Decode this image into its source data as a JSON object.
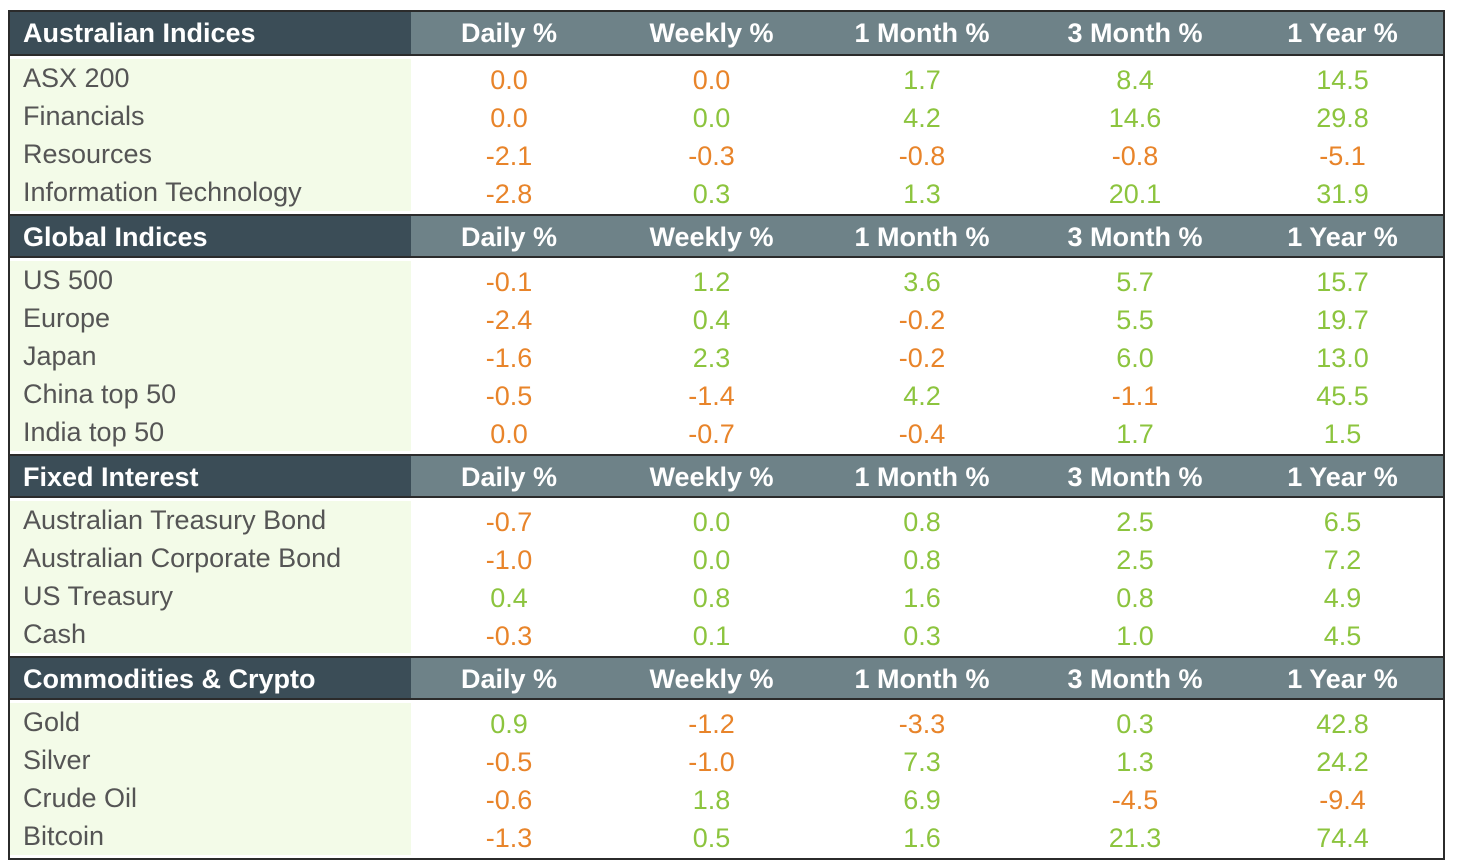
{
  "colors": {
    "header_dark": "#3b4d57",
    "header_light": "#6e8288",
    "name_bg": "#f3fbe8",
    "positive": "#8cc43e",
    "negative_or_zero": "#e8842a"
  },
  "sections": [
    {
      "title": "Australian Indices",
      "columns": [
        "Daily %",
        "Weekly %",
        "1 Month %",
        "3 Month %",
        "1 Year %"
      ],
      "rows": [
        {
          "name": "ASX 200",
          "values": [
            "0.0",
            "0.0",
            "1.7",
            "8.4",
            "14.5"
          ]
        },
        {
          "name": "Financials",
          "values": [
            "0.0",
            "0.0",
            "4.2",
            "14.6",
            "29.8"
          ]
        },
        {
          "name": "Resources",
          "values": [
            "-2.1",
            "-0.3",
            "-0.8",
            "-0.8",
            "-5.1"
          ]
        },
        {
          "name": "Information Technology",
          "values": [
            "-2.8",
            "0.3",
            "1.3",
            "20.1",
            "31.9"
          ]
        }
      ]
    },
    {
      "title": "Global Indices",
      "columns": [
        "Daily %",
        "Weekly %",
        "1 Month %",
        "3 Month %",
        "1 Year %"
      ],
      "rows": [
        {
          "name": "US 500",
          "values": [
            "-0.1",
            "1.2",
            "3.6",
            "5.7",
            "15.7"
          ]
        },
        {
          "name": "Europe",
          "values": [
            "-2.4",
            "0.4",
            "-0.2",
            "5.5",
            "19.7"
          ]
        },
        {
          "name": "Japan",
          "values": [
            "-1.6",
            "2.3",
            "-0.2",
            "6.0",
            "13.0"
          ]
        },
        {
          "name": "China top 50",
          "values": [
            "-0.5",
            "-1.4",
            "4.2",
            "-1.1",
            "45.5"
          ]
        },
        {
          "name": "India top 50",
          "values": [
            "0.0",
            "-0.7",
            "-0.4",
            "1.7",
            "1.5"
          ]
        }
      ]
    },
    {
      "title": "Fixed Interest",
      "columns": [
        "Daily %",
        "Weekly %",
        "1 Month %",
        "3 Month %",
        "1 Year %"
      ],
      "rows": [
        {
          "name": "Australian Treasury Bond",
          "values": [
            "-0.7",
            "0.0",
            "0.8",
            "2.5",
            "6.5"
          ]
        },
        {
          "name": "Australian Corporate Bond",
          "values": [
            "-1.0",
            "0.0",
            "0.8",
            "2.5",
            "7.2"
          ]
        },
        {
          "name": "US Treasury",
          "values": [
            "0.4",
            "0.8",
            "1.6",
            "0.8",
            "4.9"
          ]
        },
        {
          "name": "Cash",
          "values": [
            "-0.3",
            "0.1",
            "0.3",
            "1.0",
            "4.5"
          ]
        }
      ]
    },
    {
      "title": "Commodities & Crypto",
      "columns": [
        "Daily %",
        "Weekly %",
        "1 Month %",
        "3 Month %",
        "1 Year %"
      ],
      "rows": [
        {
          "name": "Gold",
          "values": [
            "0.9",
            "-1.2",
            "-3.3",
            "0.3",
            "42.8"
          ]
        },
        {
          "name": "Silver",
          "values": [
            "-0.5",
            "-1.0",
            "7.3",
            "1.3",
            "24.2"
          ]
        },
        {
          "name": "Crude Oil",
          "values": [
            "-0.6",
            "1.8",
            "6.9",
            "-4.5",
            "-9.4"
          ]
        },
        {
          "name": "Bitcoin",
          "values": [
            "-1.3",
            "0.5",
            "1.6",
            "21.3",
            "74.4"
          ]
        }
      ]
    }
  ],
  "value_colors": [
    [
      [
        "neg",
        "neg",
        "pos",
        "pos",
        "pos"
      ],
      [
        "neg",
        "pos",
        "pos",
        "pos",
        "pos"
      ],
      [
        "neg",
        "neg",
        "neg",
        "neg",
        "neg"
      ],
      [
        "neg",
        "pos",
        "pos",
        "pos",
        "pos"
      ]
    ],
    [
      [
        "neg",
        "pos",
        "pos",
        "pos",
        "pos"
      ],
      [
        "neg",
        "pos",
        "neg",
        "pos",
        "pos"
      ],
      [
        "neg",
        "pos",
        "neg",
        "pos",
        "pos"
      ],
      [
        "neg",
        "neg",
        "pos",
        "neg",
        "pos"
      ],
      [
        "neg",
        "neg",
        "neg",
        "pos",
        "pos"
      ]
    ],
    [
      [
        "neg",
        "pos",
        "pos",
        "pos",
        "pos"
      ],
      [
        "neg",
        "pos",
        "pos",
        "pos",
        "pos"
      ],
      [
        "pos",
        "pos",
        "pos",
        "pos",
        "pos"
      ],
      [
        "neg",
        "pos",
        "pos",
        "pos",
        "pos"
      ]
    ],
    [
      [
        "pos",
        "neg",
        "neg",
        "pos",
        "pos"
      ],
      [
        "neg",
        "neg",
        "pos",
        "pos",
        "pos"
      ],
      [
        "neg",
        "pos",
        "pos",
        "neg",
        "neg"
      ],
      [
        "neg",
        "pos",
        "pos",
        "pos",
        "pos"
      ]
    ]
  ]
}
